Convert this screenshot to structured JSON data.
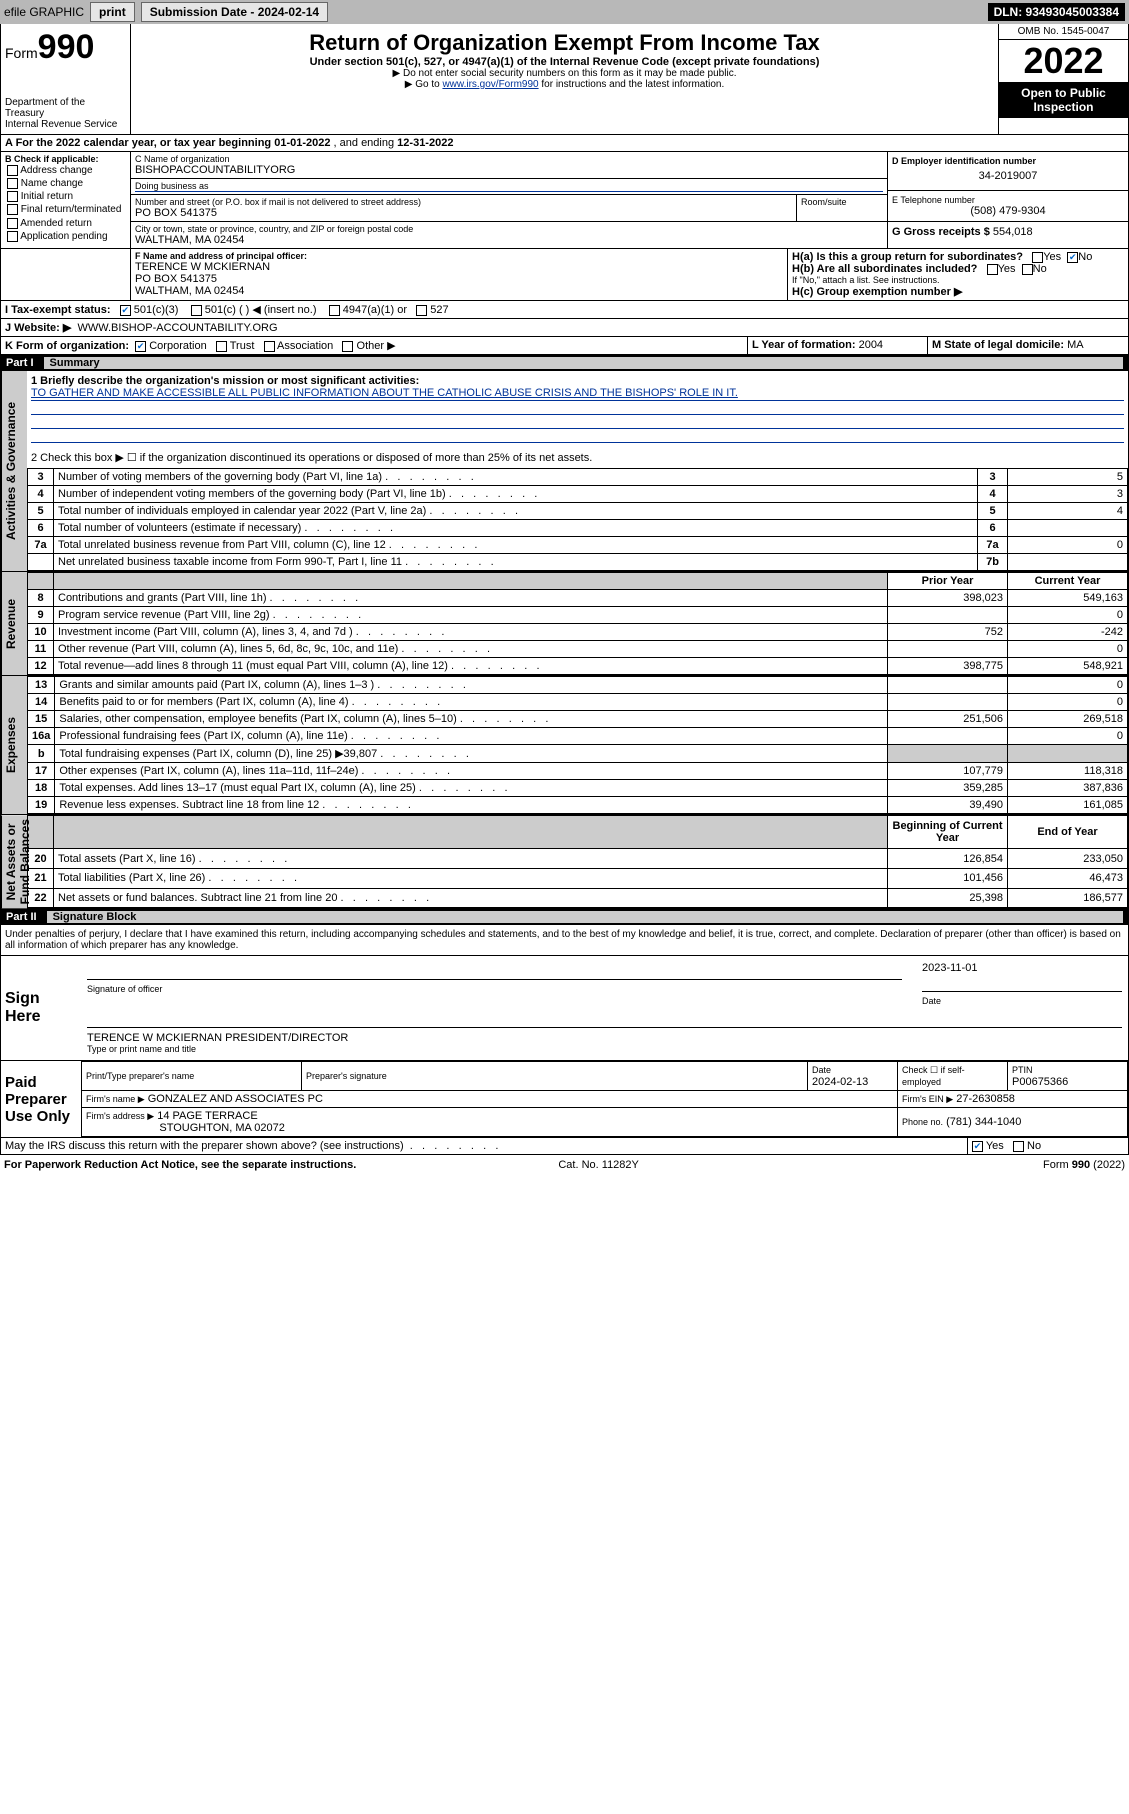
{
  "colors": {
    "topbar_bg": "#b8b8b8",
    "button_bg": "#e6e6e6",
    "black": "#000000",
    "white": "#ffffff",
    "link": "#003399",
    "shade": "#cccccc",
    "check_blue": "#0066cc"
  },
  "topbar": {
    "efile": "efile GRAPHIC",
    "print": "print",
    "submission_label": "Submission Date - 2024-02-14",
    "dln": "DLN: 93493045003384"
  },
  "header": {
    "form_prefix": "Form",
    "form_no": "990",
    "dept": "Department of the Treasury\nInternal Revenue Service",
    "title": "Return of Organization Exempt From Income Tax",
    "subtitle": "Under section 501(c), 527, or 4947(a)(1) of the Internal Revenue Code (except private foundations)",
    "note1": "▶ Do not enter social security numbers on this form as it may be made public.",
    "note2_pre": "▶ Go to ",
    "note2_link": "www.irs.gov/Form990",
    "note2_post": " for instructions and the latest information.",
    "omb": "OMB No. 1545-0047",
    "year": "2022",
    "open": "Open to Public Inspection"
  },
  "period": {
    "line_a_pre": "A For the 2022 calendar year, or tax year beginning ",
    "begin": "01-01-2022",
    "mid": " , and ending ",
    "end": "12-31-2022"
  },
  "boxB": {
    "label": "B Check if applicable:",
    "opts": [
      "Address change",
      "Name change",
      "Initial return",
      "Final return/terminated",
      "Amended return",
      "Application pending"
    ]
  },
  "boxC": {
    "label": "C Name of organization",
    "name": "BISHOPACCOUNTABILITYORG",
    "dba_label": "Doing business as",
    "dba": "",
    "street_label": "Number and street (or P.O. box if mail is not delivered to street address)",
    "room_label": "Room/suite",
    "street": "PO BOX 541375",
    "city_label": "City or town, state or province, country, and ZIP or foreign postal code",
    "city": "WALTHAM, MA  02454"
  },
  "boxD": {
    "label": "D Employer identification number",
    "val": "34-2019007"
  },
  "boxE": {
    "label": "E Telephone number",
    "val": "(508) 479-9304"
  },
  "boxG": {
    "label": "G Gross receipts $",
    "val": "554,018"
  },
  "boxF": {
    "label": "F Name and address of principal officer:",
    "name": "TERENCE W MCKIERNAN",
    "addr1": "PO BOX 541375",
    "addr2": "WALTHAM, MA  02454"
  },
  "boxH": {
    "a_label": "H(a) Is this a group return for subordinates?",
    "a_yes": "Yes",
    "a_no": "No",
    "b_label": "H(b) Are all subordinates included?",
    "b_note": "If \"No,\" attach a list. See instructions.",
    "c_label": "H(c) Group exemption number ▶"
  },
  "boxI": {
    "label": "I Tax-exempt status:",
    "opt1": "501(c)(3)",
    "opt2": "501(c) (   ) ◀ (insert no.)",
    "opt3": "4947(a)(1) or",
    "opt4": "527"
  },
  "boxJ": {
    "label": "J Website: ▶",
    "val": "WWW.BISHOP-ACCOUNTABILITY.ORG"
  },
  "boxK": {
    "label": "K Form of organization:",
    "opts": [
      "Corporation",
      "Trust",
      "Association",
      "Other ▶"
    ]
  },
  "boxL": {
    "label": "L Year of formation:",
    "val": "2004"
  },
  "boxM": {
    "label": "M State of legal domicile:",
    "val": "MA"
  },
  "part1": {
    "hdr_part": "Part I",
    "hdr_title": "Summary",
    "line1_label": "1 Briefly describe the organization's mission or most significant activities:",
    "mission": "TO GATHER AND MAKE ACCESSIBLE ALL PUBLIC INFORMATION ABOUT THE CATHOLIC ABUSE CRISIS AND THE BISHOPS' ROLE IN IT.",
    "line2": "2 Check this box ▶ ☐ if the organization discontinued its operations or disposed of more than 25% of its net assets.",
    "gov_rows": [
      {
        "n": "3",
        "desc": "Number of voting members of the governing body (Part VI, line 1a)",
        "box": "3",
        "val": "5"
      },
      {
        "n": "4",
        "desc": "Number of independent voting members of the governing body (Part VI, line 1b)",
        "box": "4",
        "val": "3"
      },
      {
        "n": "5",
        "desc": "Total number of individuals employed in calendar year 2022 (Part V, line 2a)",
        "box": "5",
        "val": "4"
      },
      {
        "n": "6",
        "desc": "Total number of volunteers (estimate if necessary)",
        "box": "6",
        "val": ""
      },
      {
        "n": "7a",
        "desc": "Total unrelated business revenue from Part VIII, column (C), line 12",
        "box": "7a",
        "val": "0"
      },
      {
        "n": "",
        "desc": "Net unrelated business taxable income from Form 990-T, Part I, line 11",
        "box": "7b",
        "val": ""
      }
    ],
    "col_prior": "Prior Year",
    "col_current": "Current Year",
    "rev_rows": [
      {
        "n": "8",
        "desc": "Contributions and grants (Part VIII, line 1h)",
        "prior": "398,023",
        "curr": "549,163"
      },
      {
        "n": "9",
        "desc": "Program service revenue (Part VIII, line 2g)",
        "prior": "",
        "curr": "0"
      },
      {
        "n": "10",
        "desc": "Investment income (Part VIII, column (A), lines 3, 4, and 7d )",
        "prior": "752",
        "curr": "-242"
      },
      {
        "n": "11",
        "desc": "Other revenue (Part VIII, column (A), lines 5, 6d, 8c, 9c, 10c, and 11e)",
        "prior": "",
        "curr": "0"
      },
      {
        "n": "12",
        "desc": "Total revenue—add lines 8 through 11 (must equal Part VIII, column (A), line 12)",
        "prior": "398,775",
        "curr": "548,921"
      }
    ],
    "exp_rows": [
      {
        "n": "13",
        "desc": "Grants and similar amounts paid (Part IX, column (A), lines 1–3 )",
        "prior": "",
        "curr": "0"
      },
      {
        "n": "14",
        "desc": "Benefits paid to or for members (Part IX, column (A), line 4)",
        "prior": "",
        "curr": "0"
      },
      {
        "n": "15",
        "desc": "Salaries, other compensation, employee benefits (Part IX, column (A), lines 5–10)",
        "prior": "251,506",
        "curr": "269,518"
      },
      {
        "n": "16a",
        "desc": "Professional fundraising fees (Part IX, column (A), line 11e)",
        "prior": "",
        "curr": "0"
      },
      {
        "n": "b",
        "desc": "Total fundraising expenses (Part IX, column (D), line 25) ▶39,807",
        "prior": "SHADE",
        "curr": "SHADE"
      },
      {
        "n": "17",
        "desc": "Other expenses (Part IX, column (A), lines 11a–11d, 11f–24e)",
        "prior": "107,779",
        "curr": "118,318"
      },
      {
        "n": "18",
        "desc": "Total expenses. Add lines 13–17 (must equal Part IX, column (A), line 25)",
        "prior": "359,285",
        "curr": "387,836"
      },
      {
        "n": "19",
        "desc": "Revenue less expenses. Subtract line 18 from line 12",
        "prior": "39,490",
        "curr": "161,085"
      }
    ],
    "na_col_begin": "Beginning of Current Year",
    "na_col_end": "End of Year",
    "na_rows": [
      {
        "n": "20",
        "desc": "Total assets (Part X, line 16)",
        "prior": "126,854",
        "curr": "233,050"
      },
      {
        "n": "21",
        "desc": "Total liabilities (Part X, line 26)",
        "prior": "101,456",
        "curr": "46,473"
      },
      {
        "n": "22",
        "desc": "Net assets or fund balances. Subtract line 21 from line 20",
        "prior": "25,398",
        "curr": "186,577"
      }
    ],
    "vlabels": {
      "gov": "Activities & Governance",
      "rev": "Revenue",
      "exp": "Expenses",
      "na": "Net Assets or\nFund Balances"
    }
  },
  "part2": {
    "hdr_part": "Part II",
    "hdr_title": "Signature Block",
    "penalty": "Under penalties of perjury, I declare that I have examined this return, including accompanying schedules and statements, and to the best of my knowledge and belief, it is true, correct, and complete. Declaration of preparer (other than officer) is based on all information of which preparer has any knowledge.",
    "sign_here": "Sign Here",
    "sig_officer_label": "Signature of officer",
    "sig_date": "2023-11-01",
    "date_label": "Date",
    "officer_name": "TERENCE W MCKIERNAN  PRESIDENT/DIRECTOR",
    "officer_name_label": "Type or print name and title",
    "paid": "Paid Preparer Use Only",
    "prep_name_label": "Print/Type preparer's name",
    "prep_sig_label": "Preparer's signature",
    "prep_date_label": "Date",
    "prep_date": "2024-02-13",
    "prep_self_label": "Check ☐ if self-employed",
    "ptin_label": "PTIN",
    "ptin": "P00675366",
    "firm_name_label": "Firm's name    ▶",
    "firm_name": "GONZALEZ AND ASSOCIATES PC",
    "firm_ein_label": "Firm's EIN ▶",
    "firm_ein": "27-2630858",
    "firm_addr_label": "Firm's address ▶",
    "firm_addr1": "14 PAGE TERRACE",
    "firm_addr2": "STOUGHTON, MA  02072",
    "firm_phone_label": "Phone no.",
    "firm_phone": "(781) 344-1040",
    "may_irs": "May the IRS discuss this return with the preparer shown above? (see instructions)",
    "yes": "Yes",
    "no": "No"
  },
  "footer": {
    "pra": "For Paperwork Reduction Act Notice, see the separate instructions.",
    "cat": "Cat. No. 11282Y",
    "form": "Form 990 (2022)"
  }
}
